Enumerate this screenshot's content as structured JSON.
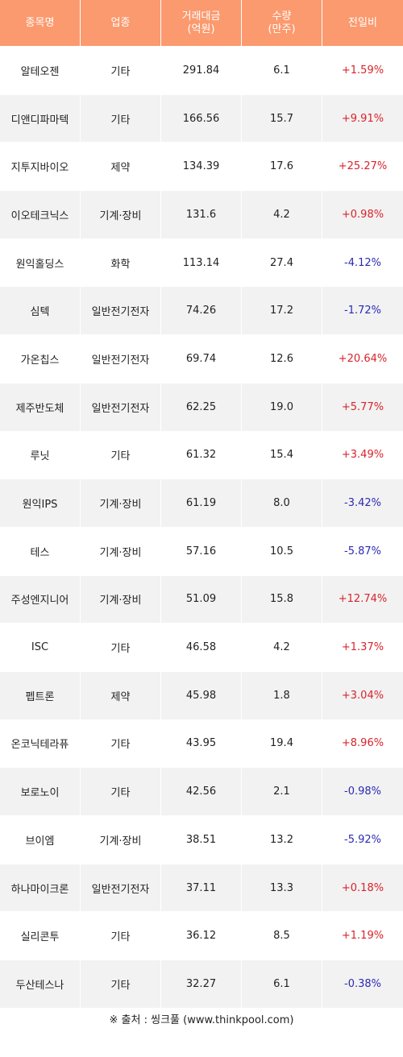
{
  "header": {
    "name": "종목명",
    "sector": "업종",
    "amount": [
      "거래대금",
      "(억원)"
    ],
    "volume": [
      "수량",
      "(만주)"
    ],
    "change": "전일비"
  },
  "rows": [
    {
      "name": "알테오젠",
      "sector": "기타",
      "amount": "291.84",
      "volume": "6.1",
      "change": "+1.59%",
      "dir": "up"
    },
    {
      "name": "디앤디파마텍",
      "sector": "기타",
      "amount": "166.56",
      "volume": "15.7",
      "change": "+9.91%",
      "dir": "up"
    },
    {
      "name": "지투지바이오",
      "sector": "제약",
      "amount": "134.39",
      "volume": "17.6",
      "change": "+25.27%",
      "dir": "up"
    },
    {
      "name": "이오테크닉스",
      "sector": "기계·장비",
      "amount": "131.6",
      "volume": "4.2",
      "change": "+0.98%",
      "dir": "up"
    },
    {
      "name": "원익홀딩스",
      "sector": "화학",
      "amount": "113.14",
      "volume": "27.4",
      "change": "-4.12%",
      "dir": "down"
    },
    {
      "name": "심텍",
      "sector": "일반전기전자",
      "amount": "74.26",
      "volume": "17.2",
      "change": "-1.72%",
      "dir": "down"
    },
    {
      "name": "가온칩스",
      "sector": "일반전기전자",
      "amount": "69.74",
      "volume": "12.6",
      "change": "+20.64%",
      "dir": "up"
    },
    {
      "name": "제주반도체",
      "sector": "일반전기전자",
      "amount": "62.25",
      "volume": "19.0",
      "change": "+5.77%",
      "dir": "up"
    },
    {
      "name": "루닛",
      "sector": "기타",
      "amount": "61.32",
      "volume": "15.4",
      "change": "+3.49%",
      "dir": "up"
    },
    {
      "name": "원익IPS",
      "sector": "기계·장비",
      "amount": "61.19",
      "volume": "8.0",
      "change": "-3.42%",
      "dir": "down"
    },
    {
      "name": "테스",
      "sector": "기계·장비",
      "amount": "57.16",
      "volume": "10.5",
      "change": "-5.87%",
      "dir": "down"
    },
    {
      "name": "주성엔지니어",
      "sector": "기계·장비",
      "amount": "51.09",
      "volume": "15.8",
      "change": "+12.74%",
      "dir": "up"
    },
    {
      "name": "ISC",
      "sector": "기타",
      "amount": "46.58",
      "volume": "4.2",
      "change": "+1.37%",
      "dir": "up"
    },
    {
      "name": "펩트론",
      "sector": "제약",
      "amount": "45.98",
      "volume": "1.8",
      "change": "+3.04%",
      "dir": "up"
    },
    {
      "name": "온코닉테라퓨",
      "sector": "기타",
      "amount": "43.95",
      "volume": "19.4",
      "change": "+8.96%",
      "dir": "up"
    },
    {
      "name": "보로노이",
      "sector": "기타",
      "amount": "42.56",
      "volume": "2.1",
      "change": "-0.98%",
      "dir": "down"
    },
    {
      "name": "브이엠",
      "sector": "기계·장비",
      "amount": "38.51",
      "volume": "13.2",
      "change": "-5.92%",
      "dir": "down"
    },
    {
      "name": "하나마이크론",
      "sector": "일반전기전자",
      "amount": "37.11",
      "volume": "13.3",
      "change": "+0.18%",
      "dir": "up"
    },
    {
      "name": "실리콘투",
      "sector": "기타",
      "amount": "36.12",
      "volume": "8.5",
      "change": "+1.19%",
      "dir": "up"
    },
    {
      "name": "두산테스나",
      "sector": "기타",
      "amount": "32.27",
      "volume": "6.1",
      "change": "-0.38%",
      "dir": "down"
    }
  ],
  "source": "※ 출처 : 씽크풀 (www.thinkpool.com)",
  "colors": {
    "header_bg": "#fb9a6e",
    "up": "#d8232a",
    "down": "#2b2bb5",
    "stripe": "#f2f2f2"
  }
}
